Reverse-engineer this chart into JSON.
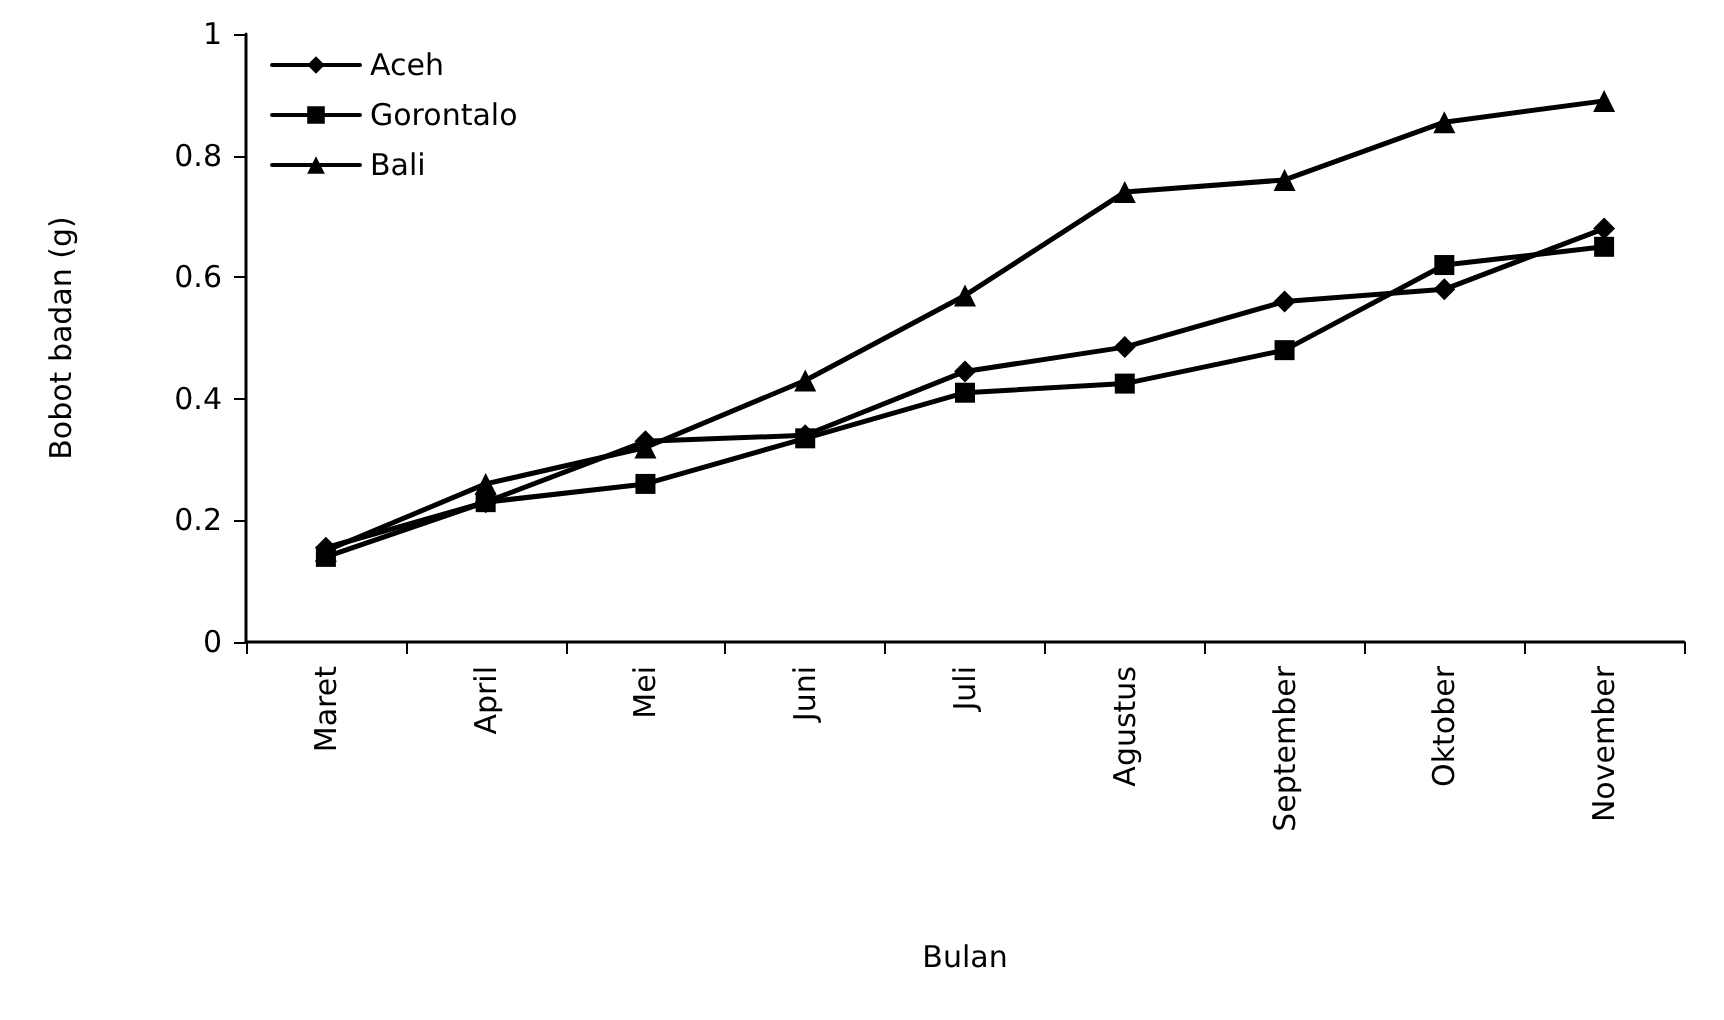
{
  "chart_data": {
    "type": "line",
    "xlabel": "Bulan",
    "ylabel": "Bobot badan (g)",
    "categories": [
      "Maret",
      "April",
      "Mei",
      "Juni",
      "Juli",
      "Agustus",
      "September",
      "Oktober",
      "November"
    ],
    "series": [
      {
        "name": "Aceh",
        "color": "#000000",
        "marker": "diamond",
        "values": [
          0.155,
          0.23,
          0.33,
          0.34,
          0.445,
          0.485,
          0.56,
          0.58,
          0.68
        ]
      },
      {
        "name": "Gorontalo",
        "color": "#000000",
        "marker": "square",
        "values": [
          0.14,
          0.23,
          0.26,
          0.335,
          0.41,
          0.425,
          0.48,
          0.62,
          0.65
        ]
      },
      {
        "name": "Bali",
        "color": "#000000",
        "marker": "triangle",
        "values": [
          0.15,
          0.26,
          0.32,
          0.43,
          0.57,
          0.74,
          0.76,
          0.855,
          0.89
        ]
      }
    ],
    "ylim": [
      0,
      1
    ],
    "yticks": [
      0,
      0.2,
      0.4,
      0.6,
      0.8,
      1
    ],
    "grid": false,
    "legend": "top left",
    "line_style": "solid"
  }
}
